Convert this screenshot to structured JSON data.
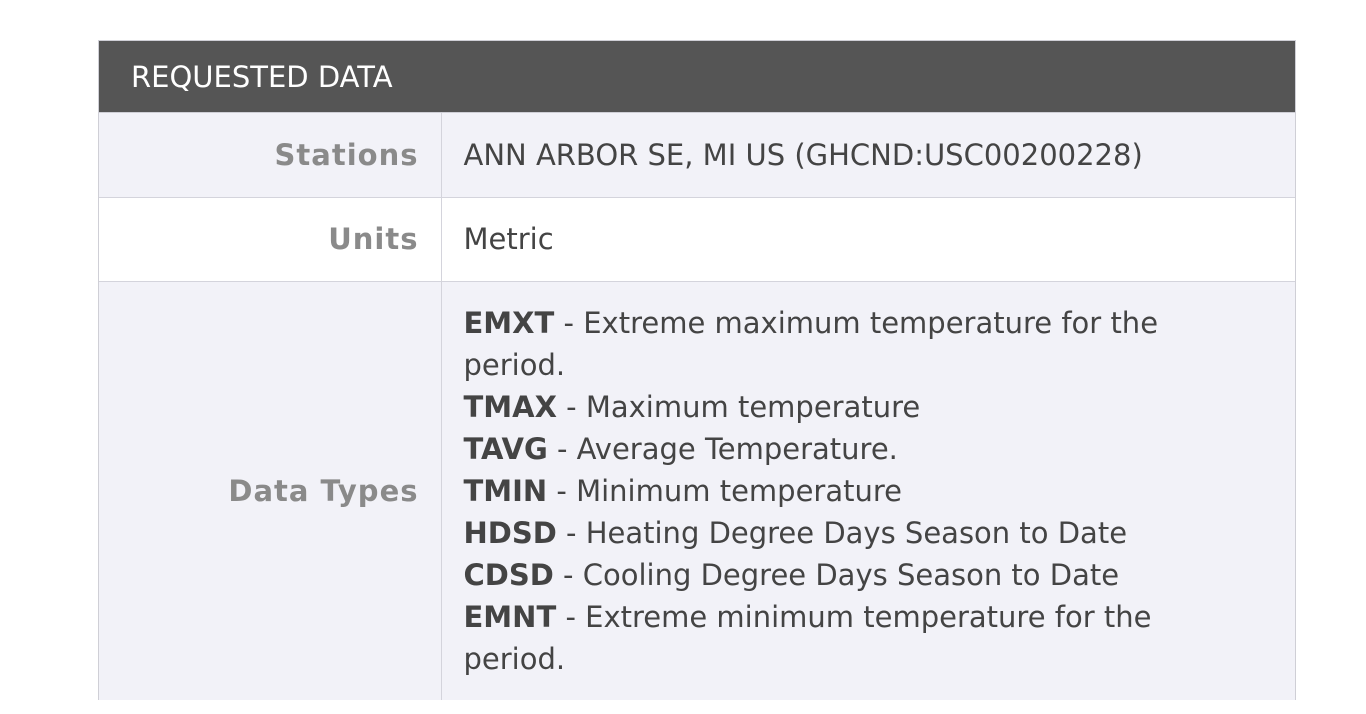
{
  "panel": {
    "title": "REQUESTED DATA"
  },
  "rows": {
    "stations": {
      "label": "Stations",
      "value": "ANN ARBOR SE, MI US (GHCND:USC00200228)"
    },
    "units": {
      "label": "Units",
      "value": "Metric"
    },
    "data_types": {
      "label": "Data Types",
      "items": [
        {
          "code": "EMXT",
          "desc": " - Extreme maximum temperature for the period."
        },
        {
          "code": "TMAX",
          "desc": " - Maximum temperature"
        },
        {
          "code": "TAVG",
          "desc": " - Average Temperature."
        },
        {
          "code": "TMIN",
          "desc": " - Minimum temperature"
        },
        {
          "code": "HDSD",
          "desc": " - Heating Degree Days Season to Date"
        },
        {
          "code": "CDSD",
          "desc": " - Cooling Degree Days Season to Date"
        },
        {
          "code": "EMNT",
          "desc": " - Extreme minimum temperature for the period."
        }
      ]
    }
  }
}
